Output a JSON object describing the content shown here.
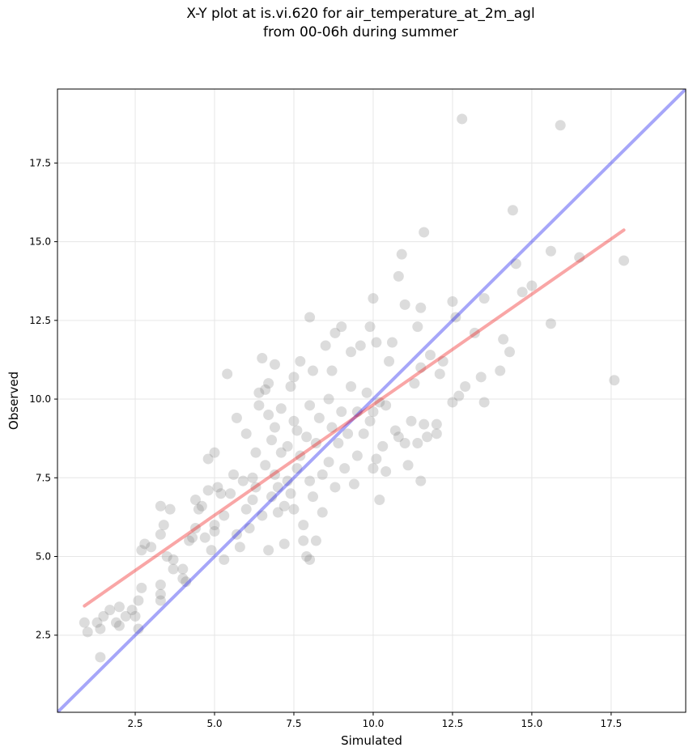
{
  "chart_data": {
    "type": "scatter",
    "title": "X-Y plot at is.vi.620 for air_temperature_at_2m_agl",
    "subtitle": "from 00-06h during summer",
    "xlabel": "Simulated",
    "ylabel": "Observed",
    "xlim": [
      0.05,
      19.85
    ],
    "ylim": [
      0.05,
      19.85
    ],
    "x_ticks": [
      "2.5",
      "5.0",
      "7.5",
      "10.0",
      "12.5",
      "15.0",
      "17.5"
    ],
    "y_ticks": [
      "2.5",
      "5.0",
      "7.5",
      "10.0",
      "12.5",
      "15.0",
      "17.5"
    ],
    "grid": true,
    "series": [
      {
        "type": "scatter",
        "color": "#808080",
        "points": [
          [
            0.9,
            2.9
          ],
          [
            1.0,
            2.6
          ],
          [
            1.3,
            2.9
          ],
          [
            1.4,
            1.8
          ],
          [
            1.4,
            2.7
          ],
          [
            1.5,
            3.1
          ],
          [
            1.7,
            3.3
          ],
          [
            1.9,
            2.9
          ],
          [
            2.0,
            2.8
          ],
          [
            2.0,
            3.4
          ],
          [
            2.2,
            3.1
          ],
          [
            2.4,
            3.3
          ],
          [
            2.5,
            3.1
          ],
          [
            2.6,
            2.7
          ],
          [
            2.6,
            3.6
          ],
          [
            2.7,
            4.0
          ],
          [
            2.7,
            5.2
          ],
          [
            2.8,
            5.4
          ],
          [
            3.0,
            5.3
          ],
          [
            3.3,
            3.6
          ],
          [
            3.3,
            3.8
          ],
          [
            3.3,
            4.1
          ],
          [
            3.3,
            5.7
          ],
          [
            3.3,
            6.6
          ],
          [
            3.4,
            6.0
          ],
          [
            3.5,
            5.0
          ],
          [
            3.6,
            6.5
          ],
          [
            3.7,
            4.6
          ],
          [
            3.7,
            4.9
          ],
          [
            4.0,
            4.3
          ],
          [
            4.0,
            4.6
          ],
          [
            4.1,
            4.2
          ],
          [
            4.2,
            5.5
          ],
          [
            4.3,
            5.6
          ],
          [
            4.4,
            5.9
          ],
          [
            4.4,
            6.8
          ],
          [
            4.5,
            6.5
          ],
          [
            4.6,
            6.6
          ],
          [
            4.7,
            5.6
          ],
          [
            4.8,
            7.1
          ],
          [
            4.8,
            8.1
          ],
          [
            4.9,
            5.2
          ],
          [
            5.0,
            5.8
          ],
          [
            5.0,
            6.0
          ],
          [
            5.0,
            8.3
          ],
          [
            5.1,
            7.2
          ],
          [
            5.2,
            7.0
          ],
          [
            5.3,
            4.9
          ],
          [
            5.3,
            6.3
          ],
          [
            5.4,
            10.8
          ],
          [
            5.5,
            7.0
          ],
          [
            5.6,
            7.6
          ],
          [
            5.7,
            9.4
          ],
          [
            5.7,
            5.7
          ],
          [
            5.8,
            5.3
          ],
          [
            5.9,
            7.4
          ],
          [
            6.0,
            6.5
          ],
          [
            6.0,
            8.9
          ],
          [
            6.1,
            5.9
          ],
          [
            6.2,
            6.8
          ],
          [
            6.2,
            7.5
          ],
          [
            6.3,
            7.2
          ],
          [
            6.3,
            8.3
          ],
          [
            6.4,
            9.8
          ],
          [
            6.4,
            10.2
          ],
          [
            6.5,
            11.3
          ],
          [
            6.5,
            6.3
          ],
          [
            6.6,
            7.9
          ],
          [
            6.6,
            10.3
          ],
          [
            6.7,
            9.5
          ],
          [
            6.7,
            10.5
          ],
          [
            6.7,
            5.2
          ],
          [
            6.8,
            6.9
          ],
          [
            6.8,
            8.7
          ],
          [
            6.9,
            7.6
          ],
          [
            6.9,
            9.1
          ],
          [
            6.9,
            11.1
          ],
          [
            7.0,
            6.4
          ],
          [
            7.0,
            7.2
          ],
          [
            7.1,
            8.3
          ],
          [
            7.1,
            9.7
          ],
          [
            7.2,
            5.4
          ],
          [
            7.2,
            6.6
          ],
          [
            7.3,
            7.4
          ],
          [
            7.3,
            8.5
          ],
          [
            7.4,
            7.0
          ],
          [
            7.4,
            10.4
          ],
          [
            7.5,
            6.5
          ],
          [
            7.5,
            9.3
          ],
          [
            7.5,
            10.7
          ],
          [
            7.6,
            7.8
          ],
          [
            7.6,
            9.0
          ],
          [
            7.7,
            8.2
          ],
          [
            7.7,
            11.2
          ],
          [
            7.8,
            6.0
          ],
          [
            7.8,
            5.5
          ],
          [
            7.9,
            5.0
          ],
          [
            7.9,
            8.8
          ],
          [
            8.0,
            4.9
          ],
          [
            8.0,
            7.4
          ],
          [
            8.0,
            9.8
          ],
          [
            8.0,
            12.6
          ],
          [
            8.1,
            6.9
          ],
          [
            8.1,
            10.9
          ],
          [
            8.2,
            5.5
          ],
          [
            8.2,
            8.6
          ],
          [
            8.3,
            9.4
          ],
          [
            8.4,
            6.4
          ],
          [
            8.4,
            7.6
          ],
          [
            8.5,
            11.7
          ],
          [
            8.6,
            8.0
          ],
          [
            8.6,
            10.0
          ],
          [
            8.7,
            9.1
          ],
          [
            8.7,
            10.9
          ],
          [
            8.8,
            7.2
          ],
          [
            8.8,
            12.1
          ],
          [
            8.9,
            8.6
          ],
          [
            9.0,
            9.6
          ],
          [
            9.0,
            12.3
          ],
          [
            9.1,
            7.8
          ],
          [
            9.2,
            8.9
          ],
          [
            9.3,
            10.4
          ],
          [
            9.3,
            11.5
          ],
          [
            9.4,
            7.3
          ],
          [
            9.5,
            8.2
          ],
          [
            9.5,
            9.6
          ],
          [
            9.6,
            11.7
          ],
          [
            9.7,
            8.9
          ],
          [
            9.8,
            10.2
          ],
          [
            9.9,
            9.3
          ],
          [
            9.9,
            12.3
          ],
          [
            10.0,
            7.8
          ],
          [
            10.0,
            9.6
          ],
          [
            10.0,
            13.2
          ],
          [
            10.1,
            8.1
          ],
          [
            10.1,
            11.8
          ],
          [
            10.2,
            6.8
          ],
          [
            10.2,
            9.9
          ],
          [
            10.3,
            8.5
          ],
          [
            10.4,
            7.7
          ],
          [
            10.4,
            9.8
          ],
          [
            10.5,
            11.2
          ],
          [
            10.6,
            11.8
          ],
          [
            10.7,
            9.0
          ],
          [
            10.8,
            8.8
          ],
          [
            10.8,
            13.9
          ],
          [
            10.9,
            14.6
          ],
          [
            11.0,
            8.6
          ],
          [
            11.0,
            13.0
          ],
          [
            11.1,
            7.9
          ],
          [
            11.2,
            9.3
          ],
          [
            11.3,
            10.5
          ],
          [
            11.4,
            8.6
          ],
          [
            11.4,
            12.3
          ],
          [
            11.5,
            7.4
          ],
          [
            11.5,
            11.0
          ],
          [
            11.5,
            12.9
          ],
          [
            11.6,
            9.2
          ],
          [
            11.6,
            15.3
          ],
          [
            11.7,
            8.8
          ],
          [
            11.8,
            11.4
          ],
          [
            12.0,
            8.9
          ],
          [
            12.0,
            9.2
          ],
          [
            12.1,
            10.8
          ],
          [
            12.2,
            11.2
          ],
          [
            12.5,
            9.9
          ],
          [
            12.5,
            13.1
          ],
          [
            12.6,
            12.6
          ],
          [
            12.7,
            10.1
          ],
          [
            12.8,
            18.9
          ],
          [
            12.9,
            10.4
          ],
          [
            13.2,
            12.1
          ],
          [
            13.4,
            10.7
          ],
          [
            13.5,
            9.9
          ],
          [
            13.5,
            13.2
          ],
          [
            14.0,
            10.9
          ],
          [
            14.1,
            11.9
          ],
          [
            14.3,
            11.5
          ],
          [
            14.4,
            16.0
          ],
          [
            14.5,
            14.3
          ],
          [
            14.7,
            13.4
          ],
          [
            15.0,
            13.6
          ],
          [
            15.6,
            12.4
          ],
          [
            15.6,
            14.7
          ],
          [
            15.9,
            18.7
          ],
          [
            16.5,
            14.5
          ],
          [
            17.6,
            10.6
          ],
          [
            17.9,
            14.4
          ]
        ]
      },
      {
        "type": "line",
        "name": "",
        "color": "#0000ee",
        "x": [
          0.05,
          19.85
        ],
        "y": [
          0.05,
          19.85
        ]
      },
      {
        "type": "line",
        "name": "",
        "color": "#ee0000",
        "x": [
          0.9,
          17.9
        ],
        "y": [
          3.43,
          15.37
        ]
      }
    ]
  }
}
